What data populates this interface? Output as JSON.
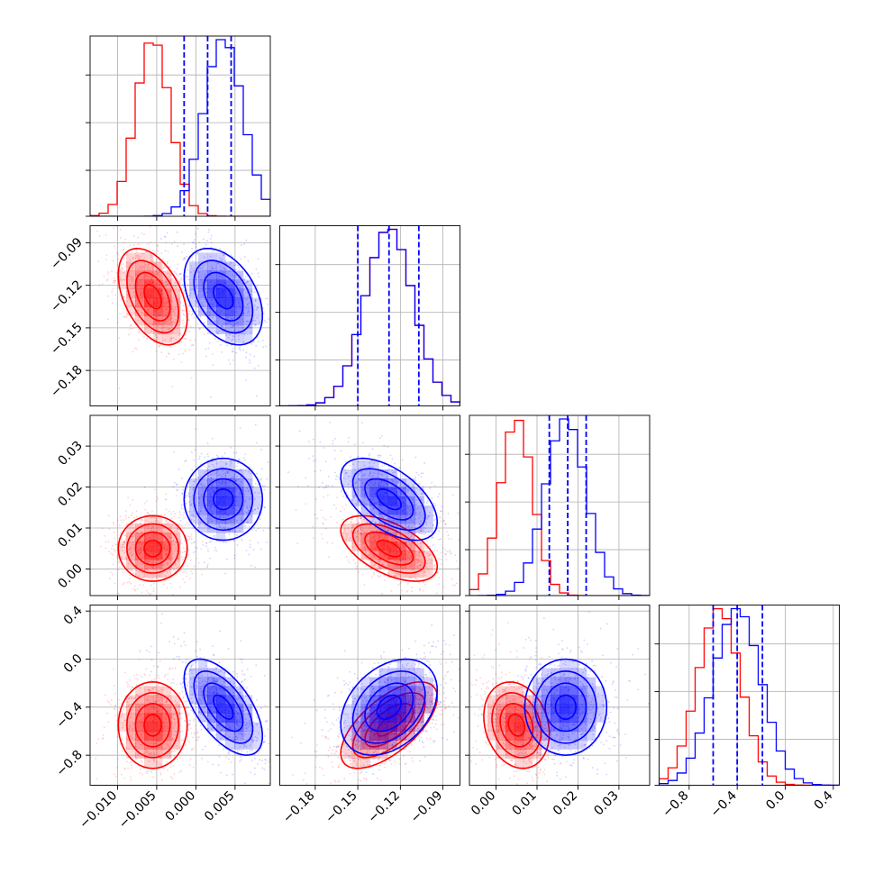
{
  "chart_data": {
    "type": "corner",
    "colors": {
      "red": "#ff0000",
      "blue": "#0000ff"
    },
    "grid": true,
    "parameters": [
      {
        "range": [
          -0.0135,
          0.0095
        ],
        "ticks": [
          -0.01,
          -0.005,
          0.0,
          0.005
        ],
        "tick_labels": [
          "−0.010",
          "−0.005",
          "0.000",
          "0.005"
        ]
      },
      {
        "range": [
          -0.205,
          -0.078
        ],
        "ticks": [
          -0.18,
          -0.15,
          -0.12,
          -0.09
        ],
        "tick_labels": [
          "−0.18",
          "−0.15",
          "−0.12",
          "−0.09"
        ]
      },
      {
        "range": [
          -0.0065,
          0.0375
        ],
        "ticks": [
          0.0,
          0.01,
          0.02,
          0.03
        ],
        "tick_labels": [
          "0.00",
          "0.01",
          "0.02",
          "0.03"
        ]
      },
      {
        "range": [
          -1.05,
          0.45
        ],
        "ticks": [
          -0.8,
          -0.4,
          0.0,
          0.4
        ],
        "tick_labels": [
          "−0.8",
          "−0.4",
          "0.0",
          "0.4"
        ]
      }
    ],
    "series": [
      {
        "color": "red",
        "mean": [
          -0.0055,
          -0.128,
          0.005,
          -0.55
        ],
        "std": [
          0.0022,
          0.017,
          0.004,
          0.18
        ],
        "corr": [
          [
            1,
            -0.45,
            0.0,
            0.0
          ],
          [
            -0.45,
            1,
            -0.55,
            0.65
          ],
          [
            0.0,
            -0.55,
            1,
            -0.2
          ],
          [
            0.0,
            0.65,
            -0.2,
            1
          ]
        ]
      },
      {
        "color": "blue",
        "mean": [
          0.0035,
          -0.128,
          0.017,
          -0.4
        ],
        "std": [
          0.0025,
          0.017,
          0.005,
          0.2
        ],
        "corr": [
          [
            1,
            -0.4,
            0.0,
            -0.6
          ],
          [
            -0.4,
            1,
            -0.55,
            0.35
          ],
          [
            0.0,
            -0.55,
            1,
            0.0
          ],
          [
            -0.6,
            0.35,
            0.0,
            1
          ]
        ]
      }
    ],
    "quantile_lines_blue": [
      [
        -0.0015,
        0.0015,
        0.0045
      ],
      [
        -0.15,
        -0.128,
        -0.107
      ],
      [
        0.013,
        0.0175,
        0.022
      ],
      [
        -0.6,
        -0.4,
        -0.19
      ]
    ]
  }
}
